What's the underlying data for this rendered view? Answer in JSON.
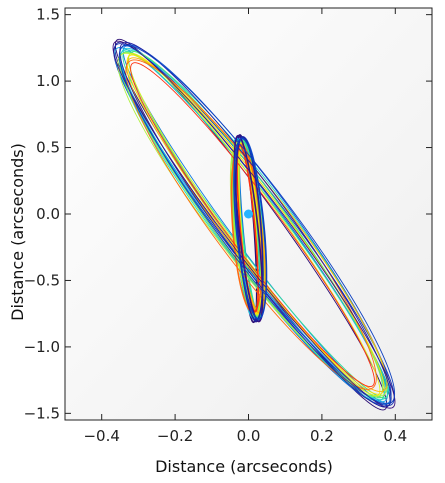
{
  "chart_data": {
    "type": "line",
    "title": "",
    "xlabel": "Distance (arcseconds)",
    "ylabel": "Distance (arcseconds)",
    "xlim": [
      -0.5,
      0.5
    ],
    "ylim": [
      -1.55,
      1.55
    ],
    "x_ticks": [
      -0.4,
      -0.2,
      0.0,
      0.2,
      0.4
    ],
    "y_ticks": [
      -1.5,
      -1.0,
      -0.5,
      0.0,
      0.5,
      1.0,
      1.5
    ],
    "x_tick_labels": [
      "−0.4",
      "−0.2",
      "0.0",
      "0.2",
      "0.4"
    ],
    "y_tick_labels": [
      "−1.5",
      "−1.0",
      "−0.5",
      "0.0",
      "0.5",
      "1.0",
      "1.5"
    ],
    "grid": false,
    "legend": "none",
    "background_color": "#f3f3f3",
    "center_marker": {
      "x": 0.0,
      "y": 0.0,
      "color": "#28b4ff"
    },
    "series": [
      {
        "a_outer": 1.44,
        "a_inner": 0.705,
        "c": "#2a0d73"
      },
      {
        "a_outer": 1.42,
        "a_inner": 0.7,
        "c": "#1f1a8f"
      },
      {
        "a_outer": 1.41,
        "a_inner": 0.695,
        "c": "#1830b0"
      },
      {
        "a_outer": 1.4,
        "a_inner": 0.69,
        "c": "#1050d0"
      },
      {
        "a_outer": 1.39,
        "a_inner": 0.685,
        "c": "#1078e0"
      },
      {
        "a_outer": 1.38,
        "a_inner": 0.68,
        "c": "#10a0e8"
      },
      {
        "a_outer": 1.37,
        "a_inner": 0.675,
        "c": "#18c4e0"
      },
      {
        "a_outer": 1.36,
        "a_inner": 0.67,
        "c": "#20d8c0"
      },
      {
        "a_outer": 1.35,
        "a_inner": 0.665,
        "c": "#30e09a"
      },
      {
        "a_outer": 1.345,
        "a_inner": 0.66,
        "c": "#50e870"
      },
      {
        "a_outer": 1.34,
        "a_inner": 0.655,
        "c": "#80f050"
      },
      {
        "a_outer": 1.335,
        "a_inner": 0.65,
        "c": "#b0f040"
      },
      {
        "a_outer": 1.33,
        "a_inner": 0.645,
        "c": "#e0f020"
      },
      {
        "a_outer": 1.32,
        "a_inner": 0.64,
        "c": "#ffe000"
      },
      {
        "a_outer": 1.3,
        "a_inner": 0.635,
        "c": "#ffb000"
      },
      {
        "a_outer": 1.28,
        "a_inner": 0.63,
        "c": "#ff6a10"
      },
      {
        "a_outer": 1.26,
        "a_inner": 0.625,
        "c": "#ff3010"
      },
      {
        "a_outer": 1.43,
        "a_inner": 0.7,
        "c": "#3a1080"
      },
      {
        "a_outer": 1.415,
        "a_inner": 0.69,
        "c": "#2020a0"
      },
      {
        "a_outer": 1.395,
        "a_inner": 0.68,
        "c": "#0d40c0"
      }
    ]
  }
}
